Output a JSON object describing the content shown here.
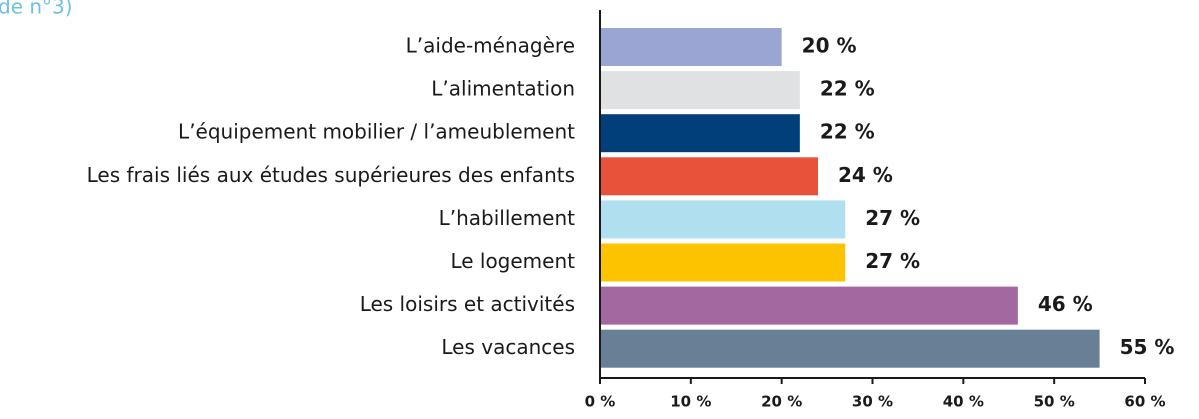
{
  "chart_data": {
    "type": "bar",
    "orientation": "horizontal",
    "title": "de n°3)",
    "categories": [
      "L’aide-ménagère",
      "L’alimentation",
      "L’équipement mobilier / l’ameublement",
      "Les frais liés aux études supérieures des enfants",
      "L’habillement",
      "Le logement",
      "Les loisirs et activités",
      "Les vacances"
    ],
    "values": [
      20,
      22,
      22,
      24,
      27,
      27,
      46,
      55
    ],
    "value_labels": [
      "20 %",
      "22 %",
      "22 %",
      "24 %",
      "27 %",
      "27 %",
      "46 %",
      "55 %"
    ],
    "colors": [
      "#9ba5d4",
      "#e0e1e3",
      "#003f7a",
      "#e8513a",
      "#b0dff0",
      "#fdc300",
      "#a2689f",
      "#697f96"
    ],
    "xlim": [
      0,
      60
    ],
    "xticks": [
      {
        "value": 0,
        "label": "0 %"
      },
      {
        "value": 10,
        "label": "10 %"
      },
      {
        "value": 20,
        "label": "20 %"
      },
      {
        "value": 30,
        "label": "30 %"
      },
      {
        "value": 40,
        "label": "40 %"
      },
      {
        "value": 50,
        "label": "50 %"
      },
      {
        "value": 60,
        "label": "60 %"
      }
    ]
  }
}
